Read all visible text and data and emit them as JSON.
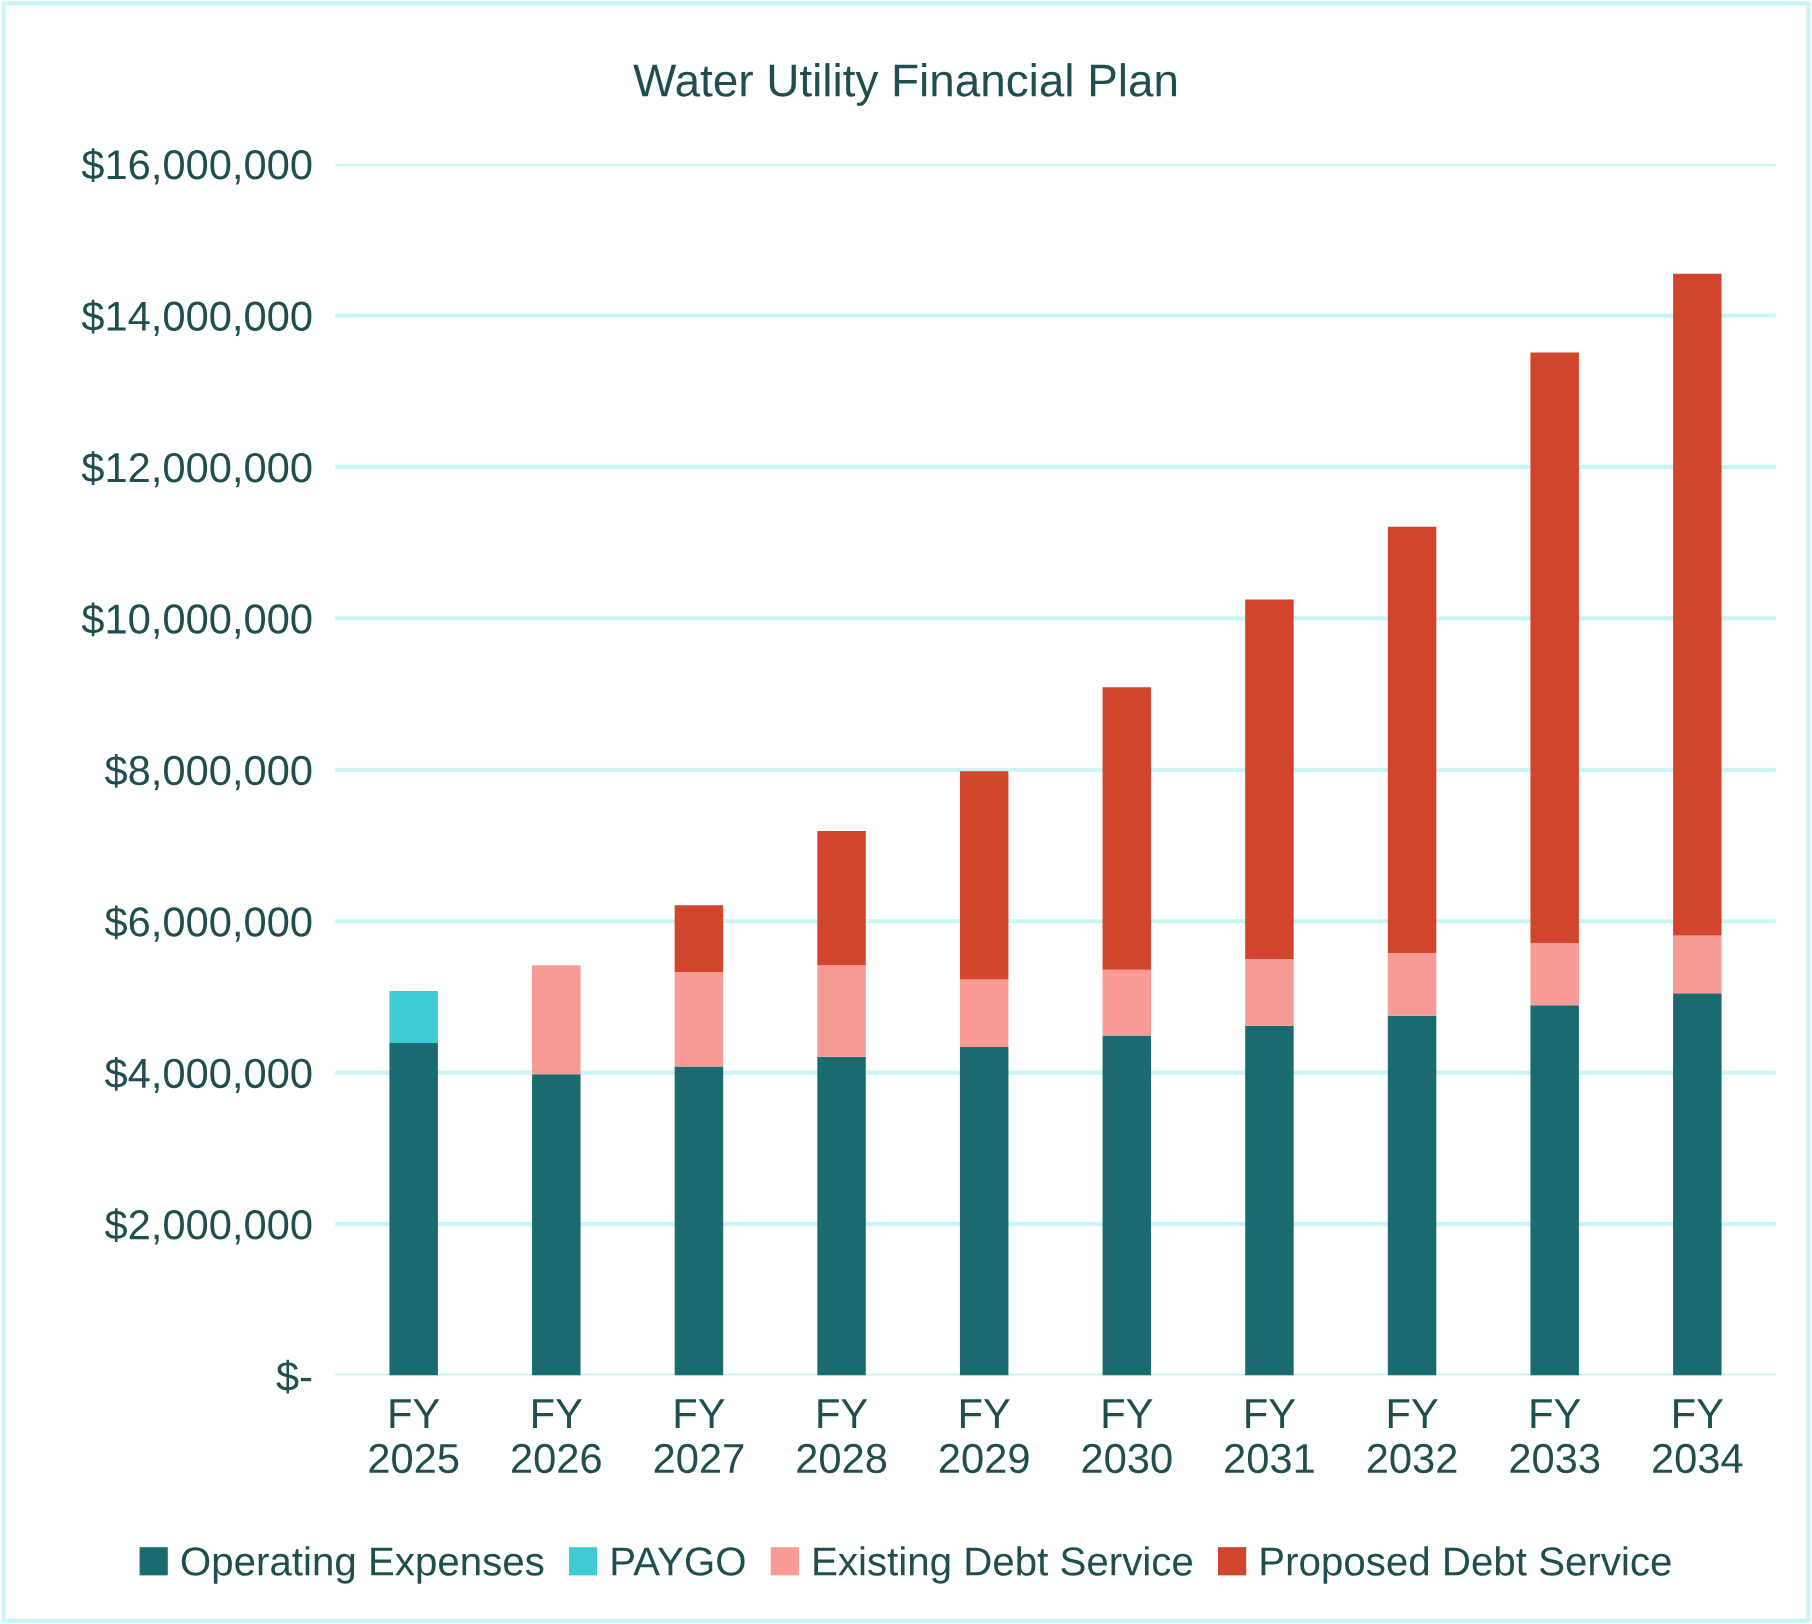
{
  "chart_data": {
    "type": "bar",
    "title": "Water Utility Financial Plan",
    "stacked": true,
    "categories": [
      "FY\n2025",
      "FY\n2026",
      "FY\n2027",
      "FY\n2028",
      "FY\n2029",
      "FY\n2030",
      "FY\n2031",
      "FY\n2032",
      "FY\n2033",
      "FY\n2034"
    ],
    "series": [
      {
        "name": "Operating Expenses",
        "color": "#1a6b6f",
        "values": [
          4390000,
          3980000,
          4080000,
          4210000,
          4340000,
          4490000,
          4620000,
          4750000,
          4890000,
          5050000
        ]
      },
      {
        "name": "PAYGO",
        "color": "#3ecbd4",
        "values": [
          690000,
          0,
          0,
          0,
          0,
          0,
          0,
          0,
          0,
          0
        ]
      },
      {
        "name": "Existing Debt Service",
        "color": "#f79b94",
        "values": [
          0,
          1440000,
          1250000,
          1210000,
          890000,
          870000,
          880000,
          830000,
          820000,
          760000
        ]
      },
      {
        "name": "Proposed Debt Service",
        "color": "#d0452c",
        "values": [
          0,
          0,
          880000,
          1770000,
          2750000,
          3730000,
          4750000,
          5630000,
          7800000,
          8740000
        ]
      }
    ],
    "ylim": [
      0,
      16000000
    ],
    "yticks": [
      {
        "value": 0,
        "label": "$-"
      },
      {
        "value": 2000000,
        "label": "$2,000,000"
      },
      {
        "value": 4000000,
        "label": "$4,000,000"
      },
      {
        "value": 6000000,
        "label": "$6,000,000"
      },
      {
        "value": 8000000,
        "label": "$8,000,000"
      },
      {
        "value": 10000000,
        "label": "$10,000,000"
      },
      {
        "value": 12000000,
        "label": "$12,000,000"
      },
      {
        "value": 14000000,
        "label": "$14,000,000"
      },
      {
        "value": 16000000,
        "label": "$16,000,000"
      }
    ],
    "grid": "y",
    "legend": "bottom"
  }
}
